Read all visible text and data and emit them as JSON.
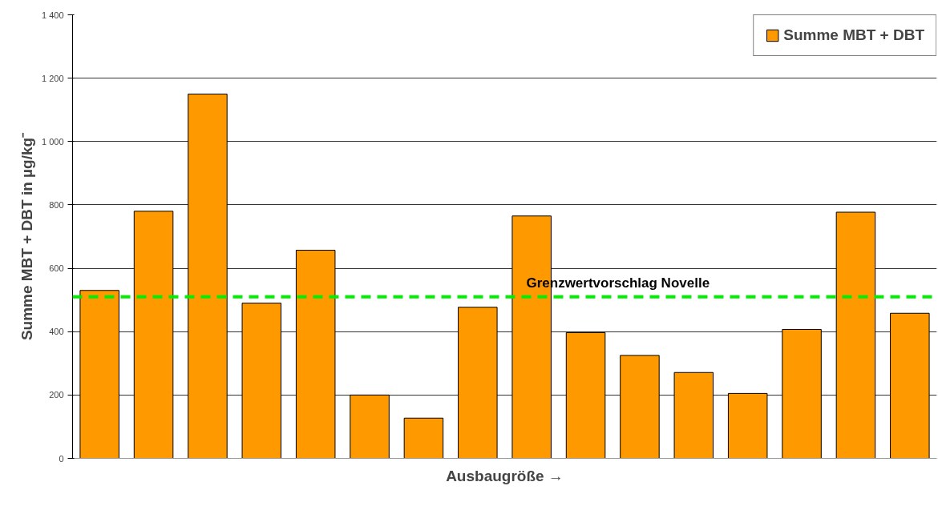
{
  "chart_data": {
    "type": "bar",
    "xlabel": "Ausbaugröße →",
    "ylabel": "Summe MBT + DBT in µg/kg⁻",
    "categories": [
      null,
      null,
      null,
      null,
      null,
      null,
      null,
      null,
      null,
      null,
      null,
      null,
      null,
      null,
      null,
      null
    ],
    "series": [
      {
        "name": "Summe MBT + DBT",
        "color": "#ff9900",
        "values": [
          530,
          780,
          1150,
          490,
          657,
          200,
          127,
          477,
          765,
          397,
          325,
          271,
          205,
          407,
          777,
          458
        ]
      }
    ],
    "ylim": [
      0,
      1400
    ],
    "yticks": [
      0,
      {
        "value": 200,
        "label": "200"
      },
      400,
      600,
      800,
      {
        "value": 1000,
        "label": "1 000"
      },
      {
        "value": 1200,
        "label": "1 200"
      },
      {
        "value": 1400,
        "label": "1 400"
      }
    ],
    "ref_lines": [
      {
        "axis": "y",
        "value": 510,
        "label": "Grenzwertvorschlag Novelle",
        "color": "#00ee00",
        "line_style": "dashed"
      }
    ],
    "grid": "y",
    "legend": "top right",
    "tick_labels": "y"
  }
}
